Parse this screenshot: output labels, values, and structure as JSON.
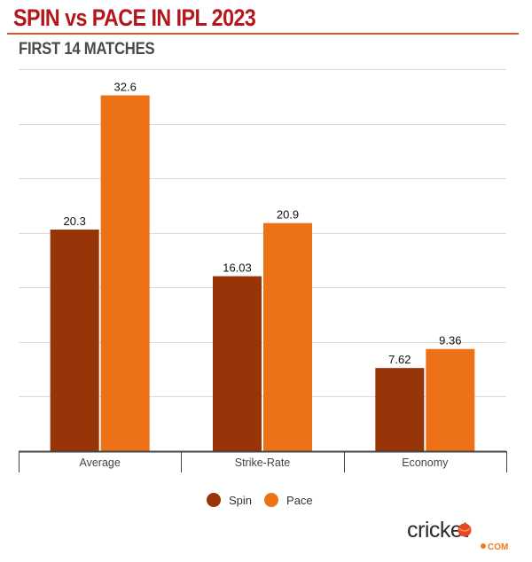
{
  "header": {
    "title": "SPIN vs PACE IN IPL 2023",
    "subtitle": "FIRST 14 MATCHES"
  },
  "colors": {
    "title": "#B4161B",
    "rule": "#E0532A",
    "spin": "#973408",
    "pace": "#EC7117"
  },
  "logo": {
    "text": "cricket",
    "suffix": "COM"
  },
  "chart_data": {
    "type": "bar",
    "title": "SPIN vs PACE IN IPL 2023",
    "subtitle": "FIRST 14 MATCHES",
    "xlabel": "",
    "ylabel": "",
    "categories": [
      "Average",
      "Strike-Rate",
      "Economy"
    ],
    "series": [
      {
        "name": "Spin",
        "values": [
          20.3,
          16.03,
          7.62
        ],
        "labels": [
          "20.3",
          "16.03",
          "7.62"
        ],
        "color": "#973408"
      },
      {
        "name": "Pace",
        "values": [
          32.6,
          20.9,
          9.36
        ],
        "labels": [
          "32.6",
          "20.9",
          "9.36"
        ],
        "color": "#EC7117"
      }
    ],
    "ylim": [
      0,
      35
    ],
    "ytick_step": 5,
    "grid": true,
    "legend": "bottom-center"
  }
}
